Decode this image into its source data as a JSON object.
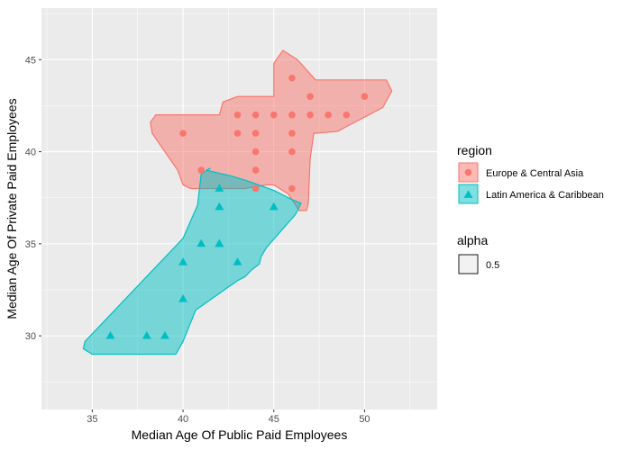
{
  "chart_data": {
    "type": "scatter",
    "xlabel": "Median Age Of Public Paid Employees",
    "ylabel": "Median Age Of Private Paid Employees",
    "xlim": [
      32.2,
      54.0
    ],
    "ylim": [
      26.0,
      47.8
    ],
    "x_ticks": [
      35,
      40,
      45,
      50
    ],
    "y_ticks": [
      30,
      35,
      40,
      45
    ],
    "grid": true,
    "legend_position": "right",
    "legend_title": "region",
    "alpha_legend": {
      "title": "alpha",
      "label": "0.5"
    },
    "series": [
      {
        "name": "Europe & Central Asia",
        "color": "#F8766D",
        "marker": "circle",
        "x": [
          40,
          41,
          43,
          43,
          44,
          44,
          44,
          44,
          44,
          45,
          46,
          46,
          46,
          46,
          46,
          46,
          47,
          47,
          48,
          49,
          50
        ],
        "y": [
          41,
          39,
          42,
          41,
          42,
          41,
          40,
          39,
          38,
          42,
          44,
          42,
          41,
          40,
          38,
          42,
          43,
          42,
          42,
          42,
          43
        ]
      },
      {
        "name": "Latin America & Caribbean",
        "color": "#00BFC4",
        "marker": "triangle",
        "x": [
          36,
          38,
          39,
          40,
          40,
          41,
          42,
          42,
          42,
          42,
          43,
          45
        ],
        "y": [
          30,
          30,
          30,
          32,
          34,
          35,
          35,
          35,
          37,
          38,
          34,
          37
        ]
      }
    ],
    "hulls": [
      {
        "series": "Europe & Central Asia",
        "x": [
          45.5,
          46.3,
          47.3,
          51.2,
          51.5,
          51.0,
          48.5,
          47.2,
          47.0,
          46.9,
          46.8,
          46.4,
          45.8,
          45.0,
          44.6,
          43.4,
          40.4,
          40.0,
          39.7,
          38.3,
          38.2,
          38.5,
          41.5,
          42.0,
          42.2,
          43.0,
          45.0,
          45.0
        ],
        "y": [
          45.5,
          45.0,
          43.9,
          43.9,
          43.3,
          42.4,
          41.1,
          41.0,
          39.6,
          37.2,
          36.8,
          36.8,
          37.7,
          38.2,
          38.2,
          38.0,
          38.0,
          38.2,
          39.0,
          41.0,
          41.6,
          42.0,
          42.0,
          42.0,
          42.7,
          43.0,
          43.0,
          44.8
        ]
      },
      {
        "series": "Latin America & Caribbean",
        "x": [
          41.5,
          41.0,
          40.8,
          40.0,
          34.6,
          34.5,
          35.0,
          39.6,
          40.0,
          40.7,
          43.0,
          43.4,
          43.8,
          44.2,
          44.3,
          44.6,
          46.2,
          46.5,
          46.0,
          45.0,
          43.6,
          42.6,
          42.1,
          41.3
        ],
        "y": [
          39.1,
          38.8,
          37.1,
          35.3,
          29.7,
          29.3,
          29.0,
          29.0,
          29.7,
          31.4,
          33.0,
          33.2,
          33.6,
          33.9,
          34.3,
          34.8,
          36.6,
          37.2,
          37.4,
          37.9,
          38.4,
          38.7,
          38.8,
          39.0
        ]
      }
    ]
  }
}
